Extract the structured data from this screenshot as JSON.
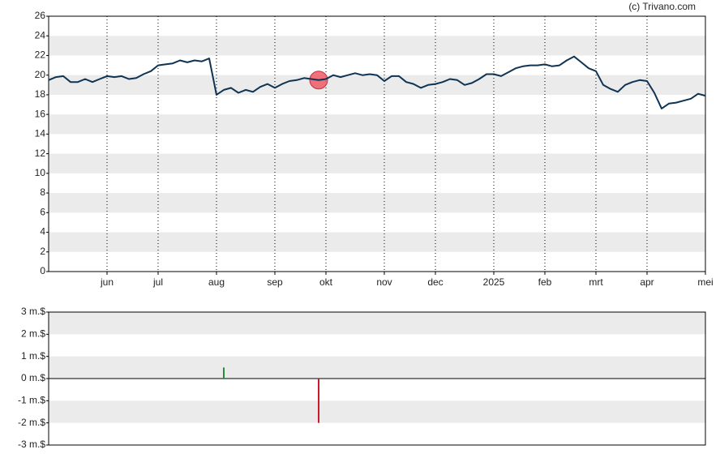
{
  "credit": "(c) Trivano.com",
  "chart_data": [
    {
      "type": "line",
      "categories": [
        null,
        null,
        null,
        null,
        null,
        null,
        null,
        null,
        "jun",
        null,
        null,
        null,
        null,
        null,
        null,
        "jul",
        null,
        null,
        null,
        null,
        null,
        null,
        null,
        "aug",
        null,
        null,
        null,
        null,
        null,
        null,
        null,
        "sep",
        null,
        null,
        null,
        null,
        null,
        null,
        "okt",
        null,
        null,
        null,
        null,
        null,
        null,
        null,
        "nov",
        null,
        null,
        null,
        null,
        null,
        null,
        "dec",
        null,
        null,
        null,
        null,
        null,
        null,
        null,
        "2025",
        null,
        null,
        null,
        null,
        null,
        null,
        "feb",
        null,
        null,
        null,
        null,
        null,
        null,
        "mrt",
        null,
        null,
        null,
        null,
        null,
        null,
        "apr",
        null,
        null,
        null,
        null,
        null,
        null,
        null,
        "mei"
      ],
      "values": [
        19.5,
        19.8,
        19.9,
        19.3,
        19.3,
        19.6,
        19.3,
        19.6,
        19.9,
        19.8,
        19.9,
        19.6,
        19.7,
        20.1,
        20.4,
        21.0,
        21.1,
        21.2,
        21.5,
        21.3,
        21.5,
        21.4,
        21.7,
        18.0,
        18.5,
        18.7,
        18.2,
        18.5,
        18.3,
        18.8,
        19.1,
        18.7,
        19.1,
        19.4,
        19.5,
        19.7,
        19.6,
        19.5,
        19.6,
        20.0,
        19.8,
        20.0,
        20.2,
        20.0,
        20.1,
        20.0,
        19.4,
        19.9,
        19.9,
        19.3,
        19.1,
        18.7,
        19.0,
        19.1,
        19.3,
        19.6,
        19.5,
        19.0,
        19.2,
        19.6,
        20.1,
        20.1,
        19.9,
        20.3,
        20.7,
        20.9,
        21.0,
        21.0,
        21.1,
        20.9,
        21.0,
        21.5,
        21.9,
        21.3,
        20.7,
        20.4,
        19.0,
        18.6,
        18.3,
        19.0,
        19.3,
        19.5,
        19.4,
        18.2,
        16.6,
        17.1,
        17.2,
        17.4,
        17.6,
        18.1,
        17.9
      ],
      "color": "#0f3352",
      "highlight_color": "#ee5a66",
      "ylim": [
        0,
        26
      ],
      "yticks": [
        0,
        2,
        4,
        6,
        8,
        10,
        12,
        14,
        16,
        18,
        20,
        22,
        24,
        26
      ],
      "grid": true
    },
    {
      "type": "bar",
      "values": [
        null,
        null,
        null,
        null,
        null,
        null,
        null,
        null,
        null,
        null,
        null,
        null,
        null,
        null,
        null,
        null,
        null,
        null,
        null,
        null,
        null,
        null,
        null,
        null,
        0.5,
        null,
        null,
        null,
        null,
        null,
        null,
        null,
        null,
        null,
        null,
        null,
        null,
        -2,
        null,
        null,
        null,
        null,
        null,
        null,
        null,
        null,
        null,
        null,
        null,
        null,
        null,
        null,
        null,
        null,
        null,
        null,
        null,
        null,
        null,
        null,
        null,
        null,
        null,
        null,
        null,
        null,
        null,
        null,
        null,
        null,
        null,
        null,
        null,
        null,
        null,
        null,
        null,
        null,
        null,
        null,
        null,
        null,
        null,
        null,
        null,
        null,
        null,
        null,
        null,
        null,
        null
      ],
      "positive_color": "#2a8a3a",
      "negative_color": "#d0182c",
      "ylim": [
        -3,
        3
      ],
      "yticks": [
        {
          "value": -3,
          "label": "-3 m.$"
        },
        {
          "value": -2,
          "label": "-2 m.$"
        },
        {
          "value": -1,
          "label": "-1 m.$"
        },
        {
          "value": 0,
          "label": "0 m.$"
        },
        {
          "value": 1,
          "label": "1 m.$"
        },
        {
          "value": 2,
          "label": "2 m.$"
        },
        {
          "value": 3,
          "label": "3 m.$"
        }
      ],
      "grid": true
    }
  ]
}
